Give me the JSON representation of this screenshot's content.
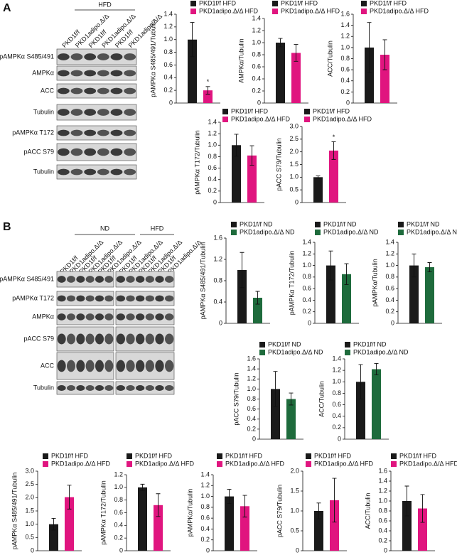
{
  "blots": [
    {
      "panel": "A",
      "groups": [
        {
          "name": "HFD",
          "lanes": [
            "PKD1f/f",
            "PKD1adipo.Δ/Δ",
            "PKD1f/f",
            "PKD1adipo.Δ/Δ",
            "PKD1f/f",
            "PKD1adipo.Δ/Δ"
          ]
        }
      ],
      "rows": [
        "pAMPKα S485/491",
        "AMPKα",
        "ACC",
        "Tubulin",
        "pAMPKα T172",
        "pACC S79",
        "Tubulin"
      ]
    },
    {
      "panel": "B",
      "groups": [
        {
          "name": "ND",
          "lanes": [
            "PKD1f/f",
            "PKD1adipo.Δ/Δ",
            "PKD1f/f",
            "PKD1adipo.Δ/Δ",
            "PKD1f/f",
            "PKD1adipo.Δ/Δ"
          ]
        },
        {
          "name": "HFD",
          "lanes": [
            "PKD1f/f",
            "PKD1adipo.Δ/Δ",
            "PKD1f/f",
            "PKD1adipo.Δ/Δ",
            "PKD1f/f",
            "PKD1adipo.Δ/Δ"
          ]
        }
      ],
      "rows": [
        "pAMPKα S485/491",
        "pAMPKα T172",
        "AMPKα",
        "pACC S79",
        "ACC",
        "Tubulin"
      ]
    }
  ],
  "chart_data": [
    {
      "type": "bar",
      "y_label": "pAMPKα S485/491/Tubulin",
      "ylim": [
        0,
        1.4
      ],
      "yticks": [
        0,
        0.2,
        0.4,
        0.6,
        0.8,
        {
          "value": 1,
          "label": "1.0"
        },
        1.2,
        1.4
      ],
      "series": [
        {
          "name": "PKD1f/f HFD",
          "color": "#1a1a1a",
          "values": [
            1.0
          ],
          "errors": [
            0.27
          ]
        },
        {
          "name": "PKD1adipo.Δ/Δ HFD",
          "color": "#e0157f",
          "values": [
            0.2
          ],
          "errors": [
            0.06
          ],
          "significance": "*"
        }
      ]
    },
    {
      "type": "bar",
      "y_label": "AMPKα/Tubulin",
      "ylim": [
        0,
        1.4
      ],
      "yticks": [
        0,
        0.2,
        0.4,
        0.6,
        0.8,
        {
          "value": 1,
          "label": "1.0"
        },
        1.2,
        1.4
      ],
      "series": [
        {
          "name": "PKD1f/f HFD",
          "color": "#1a1a1a",
          "values": [
            1.0
          ],
          "errors": [
            0.07
          ]
        },
        {
          "name": "PKD1adipo.Δ/Δ HFD",
          "color": "#e0157f",
          "values": [
            0.83
          ],
          "errors": [
            0.14
          ]
        }
      ]
    },
    {
      "type": "bar",
      "y_label": "ACC/Tubulin",
      "ylim": [
        0,
        1.6
      ],
      "yticks": [
        0,
        0.2,
        0.4,
        0.6,
        0.8,
        {
          "value": 1,
          "label": "1.0"
        },
        1.2,
        1.4,
        1.6
      ],
      "series": [
        {
          "name": "PKD1f/f HFD",
          "color": "#1a1a1a",
          "values": [
            1.0
          ],
          "errors": [
            0.45
          ]
        },
        {
          "name": "PKD1adipo.Δ/Δ HFD",
          "color": "#e0157f",
          "values": [
            0.87
          ],
          "errors": [
            0.27
          ]
        }
      ]
    },
    {
      "type": "bar",
      "y_label": "pAMPKα T172/Tubulin",
      "ylim": [
        0,
        1.4
      ],
      "yticks": [
        0,
        0.2,
        0.4,
        0.6,
        0.8,
        {
          "value": 1,
          "label": "1.0"
        },
        1.2,
        1.4
      ],
      "series": [
        {
          "name": "PKD1f/f HFD",
          "color": "#1a1a1a",
          "values": [
            1.0
          ],
          "errors": [
            0.19
          ]
        },
        {
          "name": "PKD1adipo.Δ/Δ HFD",
          "color": "#e0157f",
          "values": [
            0.82
          ],
          "errors": [
            0.17
          ]
        }
      ]
    },
    {
      "type": "bar",
      "y_label": "pACC S79/Tubulin",
      "ylim": [
        0,
        3
      ],
      "yticks": [
        0,
        0.5,
        {
          "value": 1,
          "label": "1.0"
        },
        1.5,
        {
          "value": 2,
          "label": "2.0"
        },
        2.5,
        {
          "value": 3,
          "label": "3.0"
        }
      ],
      "series": [
        {
          "name": "PKD1f/f HFD",
          "color": "#1a1a1a",
          "values": [
            1.0
          ],
          "errors": [
            0.05
          ]
        },
        {
          "name": "PKD1adipo.Δ/Δ HFD",
          "color": "#e0157f",
          "values": [
            2.05
          ],
          "errors": [
            0.35
          ],
          "significance": "*"
        }
      ]
    },
    {
      "type": "bar",
      "y_label": "pAMPKα S485/491/Tubulin",
      "ylim": [
        0,
        1.6
      ],
      "yticks": [
        0,
        0.4,
        0.8,
        1.2,
        1.6
      ],
      "series": [
        {
          "name": "PKD1f/f ND",
          "color": "#1a1a1a",
          "values": [
            1.0
          ],
          "errors": [
            0.33
          ]
        },
        {
          "name": "PKD1adipo.Δ/Δ ND",
          "color": "#1e6b3c",
          "values": [
            0.48
          ],
          "errors": [
            0.12
          ]
        }
      ]
    },
    {
      "type": "bar",
      "y_label": "pAMPKα T172/Tubulin",
      "ylim": [
        0,
        1.4
      ],
      "yticks": [
        0,
        0.2,
        0.4,
        0.6,
        0.8,
        {
          "value": 1,
          "label": "1.0"
        },
        1.2,
        1.4
      ],
      "series": [
        {
          "name": "PKD1f/f ND",
          "color": "#1a1a1a",
          "values": [
            1.0
          ],
          "errors": [
            0.25
          ]
        },
        {
          "name": "PKD1adipo.Δ/Δ ND",
          "color": "#1e6b3c",
          "values": [
            0.85
          ],
          "errors": [
            0.18
          ]
        }
      ]
    },
    {
      "type": "bar",
      "y_label": "pAMPKα/Tubulin",
      "ylim": [
        0,
        1.4
      ],
      "yticks": [
        0,
        0.2,
        0.4,
        0.6,
        0.8,
        {
          "value": 1,
          "label": "1.0"
        },
        1.2,
        1.4
      ],
      "series": [
        {
          "name": "PKD1f/f ND",
          "color": "#1a1a1a",
          "values": [
            1.0
          ],
          "errors": [
            0.2
          ]
        },
        {
          "name": "PKD1adipo.Δ/Δ ND",
          "color": "#1e6b3c",
          "values": [
            0.97
          ],
          "errors": [
            0.08
          ]
        }
      ]
    },
    {
      "type": "bar",
      "y_label": "pACC S79/Tubulin",
      "ylim": [
        0,
        1.6
      ],
      "yticks": [
        0,
        0.2,
        0.4,
        0.6,
        0.8,
        {
          "value": 1,
          "label": "1.0"
        },
        1.2,
        1.4,
        1.6
      ],
      "series": [
        {
          "name": "PKD1f/f ND",
          "color": "#1a1a1a",
          "values": [
            1.0
          ],
          "errors": [
            0.35
          ]
        },
        {
          "name": "PKD1adipo.Δ/Δ ND",
          "color": "#1e6b3c",
          "values": [
            0.8
          ],
          "errors": [
            0.12
          ]
        }
      ]
    },
    {
      "type": "bar",
      "y_label": "ACC/Tubulin",
      "ylim": [
        0,
        1.4
      ],
      "yticks": [
        0,
        0.2,
        0.4,
        0.6,
        0.8,
        {
          "value": 1,
          "label": "1.0"
        },
        1.2,
        1.4
      ],
      "series": [
        {
          "name": "PKD1f/f ND",
          "color": "#1a1a1a",
          "values": [
            1.0
          ],
          "errors": [
            0.3
          ]
        },
        {
          "name": "PKD1adipo.Δ/Δ ND",
          "color": "#1e6b3c",
          "values": [
            1.22
          ],
          "errors": [
            0.1
          ]
        }
      ]
    },
    {
      "type": "bar",
      "y_label": "pAMPKα S485/491/Tubulin",
      "ylim": [
        0,
        3
      ],
      "yticks": [
        0,
        0.5,
        {
          "value": 1,
          "label": "1.0"
        },
        1.5,
        {
          "value": 2,
          "label": "2.0"
        },
        2.5,
        {
          "value": 3,
          "label": "3.0"
        }
      ],
      "series": [
        {
          "name": "PKD1f/f HFD",
          "color": "#1a1a1a",
          "values": [
            1.0
          ],
          "errors": [
            0.22
          ]
        },
        {
          "name": "PKD1adipo.Δ/Δ HFD",
          "color": "#e0157f",
          "values": [
            2.02
          ],
          "errors": [
            0.45
          ]
        }
      ]
    },
    {
      "type": "bar",
      "y_label": "pAMPKα T172/Tubulin",
      "ylim": [
        0,
        1.2
      ],
      "yticks": [
        0,
        0.2,
        0.4,
        0.6,
        0.8,
        {
          "value": 1,
          "label": "1.0"
        },
        1.2
      ],
      "series": [
        {
          "name": "PKD1f/f HFD",
          "color": "#1a1a1a",
          "values": [
            1.0
          ],
          "errors": [
            0.05
          ]
        },
        {
          "name": "PKD1adipo.Δ/Δ HFD",
          "color": "#e0157f",
          "values": [
            0.72
          ],
          "errors": [
            0.18
          ]
        }
      ]
    },
    {
      "type": "bar",
      "y_label": "pAMPKα/Tubulin",
      "ylim": [
        0,
        1.4
      ],
      "yticks": [
        0,
        0.2,
        0.4,
        0.6,
        0.8,
        {
          "value": 1,
          "label": "1.0"
        },
        1.2,
        1.4
      ],
      "series": [
        {
          "name": "PKD1f/f HFD",
          "color": "#1a1a1a",
          "values": [
            1.0
          ],
          "errors": [
            0.13
          ]
        },
        {
          "name": "PKD1adipo.Δ/Δ HFD",
          "color": "#e0157f",
          "values": [
            0.82
          ],
          "errors": [
            0.2
          ]
        }
      ]
    },
    {
      "type": "bar",
      "y_label": "pACC S79/Tubulin",
      "ylim": [
        0,
        2
      ],
      "yticks": [
        0,
        0.5,
        {
          "value": 1,
          "label": "1.0"
        },
        1.5,
        {
          "value": 2,
          "label": "2.0"
        }
      ],
      "series": [
        {
          "name": "PKD1f/f HFD",
          "color": "#1a1a1a",
          "values": [
            1.0
          ],
          "errors": [
            0.2
          ]
        },
        {
          "name": "PKD1adipo.Δ/Δ HFD",
          "color": "#e0157f",
          "values": [
            1.27
          ],
          "errors": [
            0.55
          ]
        }
      ]
    },
    {
      "type": "bar",
      "y_label": "ACC/Tubulin",
      "ylim": [
        0,
        1.6
      ],
      "yticks": [
        0,
        0.2,
        0.4,
        0.6,
        0.8,
        {
          "value": 1,
          "label": "1.0"
        },
        1.2,
        1.4,
        1.6
      ],
      "series": [
        {
          "name": "PKD1f/f HFD",
          "color": "#1a1a1a",
          "values": [
            1.0
          ],
          "errors": [
            0.3
          ]
        },
        {
          "name": "PKD1adipo.Δ/Δ HFD",
          "color": "#e0157f",
          "values": [
            0.85
          ],
          "errors": [
            0.28
          ]
        }
      ]
    }
  ]
}
